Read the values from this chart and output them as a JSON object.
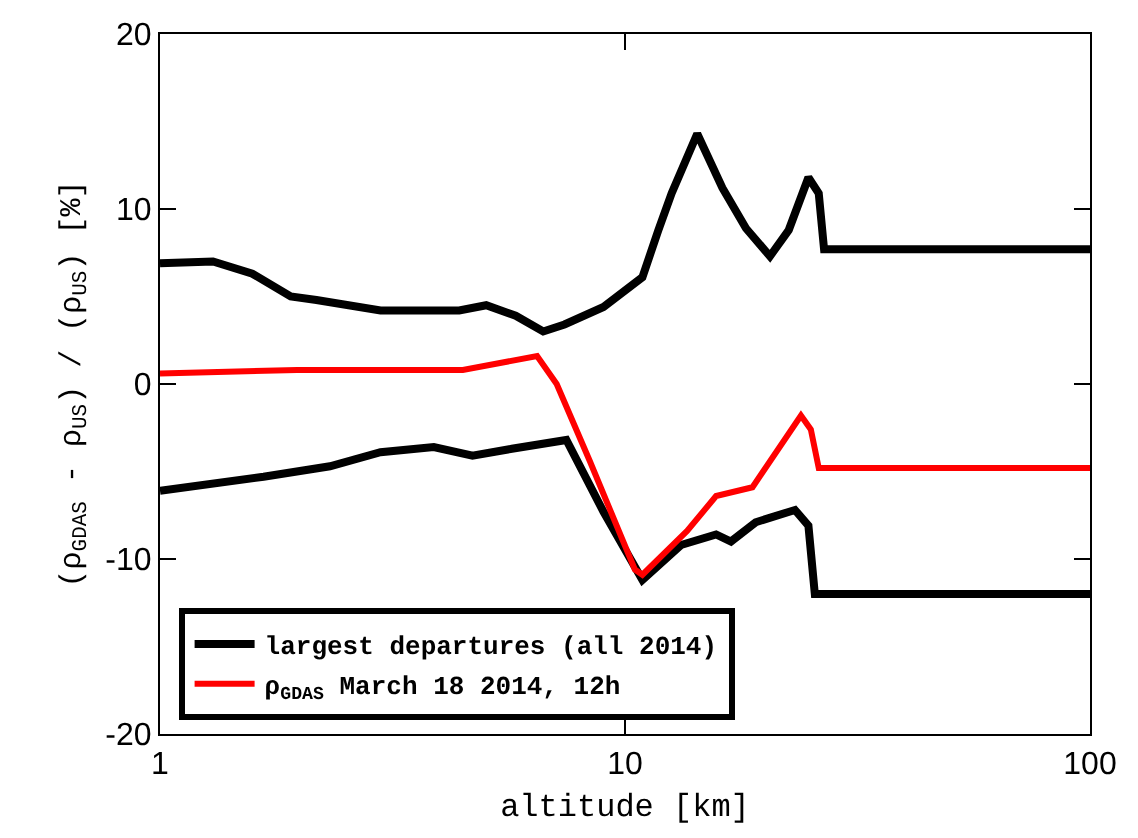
{
  "chart_data": {
    "type": "line",
    "xlabel": "altitude [km]",
    "ylabel": "(ρ$_{GDAS}$ - ρ$_{US}$) / (ρ$_{US}$) [%]",
    "log": "x",
    "xlim": [
      1,
      100
    ],
    "xticks": [
      1,
      10,
      100
    ],
    "ylim": [
      -20,
      20
    ],
    "yticks": [
      -20,
      -10,
      0,
      10,
      20
    ],
    "grid": false,
    "legend": "bottom left",
    "line_style": "solid",
    "marker": "none",
    "series": [
      {
        "name": "largest departures (all 2014)",
        "color": "#000000",
        "x": [
          1,
          1.3,
          1.58,
          1.91,
          2.17,
          2.98,
          3.62,
          4.4,
          5.03,
          5.82,
          6.67,
          7.41,
          8.99,
          10.9,
          11.8,
          12.6,
          14.3,
          16.2,
          18.2,
          20.5,
          22.5,
          24.8,
          26.1,
          26.8,
          100
        ],
        "values": [
          6.9,
          7.0,
          6.3,
          5.0,
          4.8,
          4.2,
          4.2,
          4.2,
          4.5,
          3.9,
          3.0,
          3.4,
          4.4,
          6.1,
          8.8,
          10.9,
          14.3,
          11.2,
          8.9,
          7.3,
          8.8,
          11.8,
          10.9,
          7.7,
          7.7
        ]
      },
      {
        "color": "#000000",
        "x": [
          1,
          1.67,
          2.32,
          2.98,
          3.88,
          4.7,
          5.71,
          7.48,
          8.99,
          10.9,
          13.2,
          15.7,
          16.9,
          19.1,
          23.2,
          24.8,
          25.6,
          100
        ],
        "values": [
          -6.1,
          -5.3,
          -4.7,
          -3.9,
          -3.6,
          -4.1,
          -3.7,
          -3.2,
          -7.3,
          -11.2,
          -9.2,
          -8.6,
          -9.0,
          -7.9,
          -7.2,
          -8.1,
          -12.0,
          -12.0
        ]
      },
      {
        "name": "ρ$_{GDAS}$ March 18 2014, 12h",
        "color": "#ff0000",
        "x": [
          1,
          1.97,
          4.48,
          6.47,
          7.13,
          8.4,
          10.5,
          10.9,
          13.6,
          15.7,
          18.8,
          23.9,
          25.1,
          26.1,
          100
        ],
        "values": [
          0.6,
          0.8,
          0.8,
          1.6,
          0,
          -4.4,
          -10.6,
          -10.9,
          -8.4,
          -6.4,
          -5.9,
          -1.8,
          -2.6,
          -4.8,
          -4.8
        ]
      }
    ]
  }
}
